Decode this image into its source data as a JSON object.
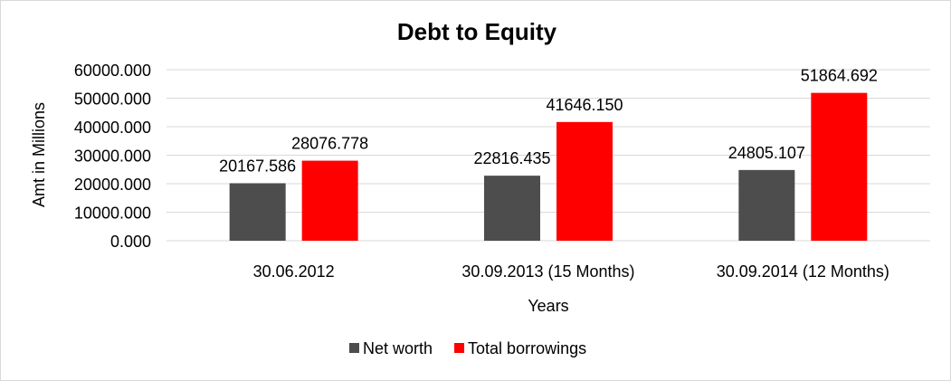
{
  "chart_data": {
    "type": "bar",
    "title": "Debt to Equity",
    "xlabel": "Years",
    "ylabel": "Amt in Millions",
    "categories": [
      "30.06.2012",
      "30.09.2013 (15 Months)",
      "30.09.2014 (12 Months)"
    ],
    "series": [
      {
        "name": "Net worth",
        "color": "#4d4d4d",
        "values": [
          20167.586,
          22816.435,
          24805.107
        ],
        "labels": [
          "20167.586",
          "22816.435",
          "24805.107"
        ]
      },
      {
        "name": "Total borrowings",
        "color": "#ff0000",
        "values": [
          28076.778,
          41646.15,
          51864.692
        ],
        "labels": [
          "28076.778",
          "41646.150",
          "51864.692"
        ]
      }
    ],
    "ylim": [
      0,
      60000
    ],
    "yticks": [
      0,
      10000,
      20000,
      30000,
      40000,
      50000,
      60000
    ],
    "ytick_labels": [
      "0.000",
      "10000.000",
      "20000.000",
      "30000.000",
      "40000.000",
      "50000.000",
      "60000.000"
    ],
    "grid": true,
    "legend": "bottom"
  }
}
